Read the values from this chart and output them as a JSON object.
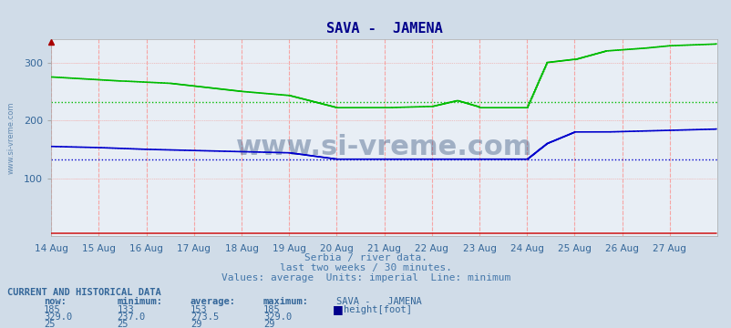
{
  "title": "SAVA -  JAMENA",
  "title_color": "#00008B",
  "fig_bg_color": "#d0dce8",
  "plot_bg_color": "#e8eef5",
  "ylim": [
    0,
    340
  ],
  "yticks": [
    100,
    200,
    300
  ],
  "n_points": 672,
  "x_day_ticks": [
    0,
    48,
    96,
    144,
    192,
    240,
    288,
    336,
    384,
    432,
    480,
    528,
    576,
    624
  ],
  "x_labels": [
    "14 Aug",
    "15 Aug",
    "16 Aug",
    "17 Aug",
    "18 Aug",
    "19 Aug",
    "20 Aug",
    "21 Aug",
    "22 Aug",
    "23 Aug",
    "24 Aug",
    "25 Aug",
    "26 Aug",
    "27 Aug"
  ],
  "hline_green": 232,
  "hline_blue": 133,
  "hline_green_color": "#00bb00",
  "hline_blue_color": "#0000cc",
  "line_green_color": "#00bb00",
  "line_blue_color": "#0000cc",
  "line_red_color": "#cc0000",
  "red_line_y": 5,
  "vline_color": "#ff9999",
  "grid_color_h": "#ffcccc",
  "grid_color_v": "#ffcccc",
  "subtitle1": "Serbia / river data.",
  "subtitle2": "last two weeks / 30 minutes.",
  "subtitle3": "Values: average  Units: imperial  Line: minimum",
  "subtitle_color": "#4477aa",
  "watermark": "www.si-vreme.com",
  "watermark_color": "#1a3a6a",
  "ylabel_text": "www.si-vreme.com",
  "table_title": "CURRENT AND HISTORICAL DATA",
  "table_color": "#336699",
  "now_val": 185,
  "min_val": 133,
  "avg_val": 153,
  "max_val": 185,
  "now_val2": "329.0",
  "min_val2": "237.0",
  "avg_val2": "273.5",
  "max_val2": "329.0",
  "now_val3": 25,
  "min_val3": 25,
  "avg_val3": 29,
  "max_val3": 29,
  "legend_label": "height[foot]",
  "legend_color": "#00008B",
  "arrow_color": "#8B0000"
}
